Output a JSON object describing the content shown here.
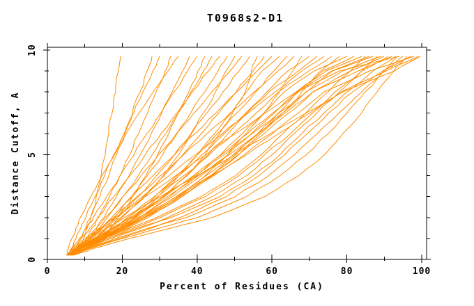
{
  "window": {
    "background": "#ffffff"
  },
  "colors": {
    "curve": "#ff8c00",
    "axis": "#000000",
    "text": "#000000",
    "background": "#ffffff"
  },
  "chart_data": {
    "type": "line",
    "title": "T0968s2-D1",
    "xlabel": "Percent of Residues (CA)",
    "ylabel": "Distance Cutoff, A",
    "xlim": [
      0,
      101.5
    ],
    "ylim": [
      0,
      10.15
    ],
    "grid": false,
    "legend": "none",
    "xticks_major": [
      0,
      20,
      40,
      60,
      80,
      100
    ],
    "xticks_minor": [
      10,
      30,
      50,
      70,
      90
    ],
    "xtick_labels": [
      "0",
      "20",
      "40",
      "60",
      "80",
      "100"
    ],
    "yticks_major": [
      0,
      5,
      10
    ],
    "yticks_minor": [
      1,
      2,
      3,
      4,
      6,
      7,
      8,
      9
    ],
    "ytick_labels": [
      "0",
      "5",
      "10"
    ],
    "series_note": "Each series is percent-of-residues (CA) sampled at the shared distance cutoffs below; one curve per predicted model",
    "cutoff_samples": [
      0.2,
      0.5,
      1,
      1.5,
      2,
      3,
      4,
      5,
      6,
      7,
      8,
      9,
      9.7
    ],
    "series": [
      [
        5.2,
        7.8,
        9.7,
        10.7,
        11.6,
        13.1,
        14.3,
        15.4,
        16.4,
        17.3,
        18.2,
        19.0,
        19.5
      ],
      [
        5.0,
        6.5,
        8.7,
        10.2,
        11.5,
        14.0,
        16.3,
        18.5,
        20.7,
        22.7,
        24.7,
        26.7,
        28.0
      ],
      [
        5.5,
        6.3,
        7.6,
        8.9,
        10.2,
        12.7,
        15.3,
        17.9,
        20.5,
        23.0,
        25.6,
        28.2,
        30.0
      ],
      [
        5.8,
        7.5,
        10.4,
        12.0,
        13.6,
        16.6,
        19.3,
        21.9,
        24.4,
        26.8,
        29.1,
        31.4,
        33.0
      ],
      [
        5.2,
        5.6,
        6.6,
        7.6,
        8.8,
        11.5,
        14.5,
        17.7,
        21.0,
        24.6,
        28.3,
        32.2,
        35.0
      ],
      [
        5.6,
        7.4,
        11.2,
        13.2,
        15.0,
        18.5,
        21.7,
        24.8,
        27.8,
        30.6,
        33.4,
        36.1,
        38.0
      ],
      [
        5.7,
        6.8,
        8.6,
        10.4,
        12.2,
        15.8,
        19.4,
        23.0,
        26.7,
        30.3,
        33.9,
        37.5,
        40.0
      ],
      [
        5.9,
        8.3,
        14.2,
        16.7,
        18.9,
        22.8,
        26.3,
        29.4,
        32.4,
        35.1,
        37.8,
        40.3,
        42.0
      ],
      [
        5.4,
        7.6,
        11.3,
        13.7,
        16.0,
        20.2,
        24.2,
        27.9,
        31.6,
        35.0,
        38.4,
        41.7,
        44.0
      ],
      [
        5.9,
        7.1,
        9.2,
        11.4,
        13.4,
        17.7,
        21.9,
        26.1,
        30.4,
        34.6,
        38.8,
        43.0,
        46.0
      ],
      [
        5.6,
        7.9,
        12.8,
        15.4,
        17.8,
        22.4,
        26.7,
        30.7,
        34.6,
        38.3,
        42.0,
        45.6,
        48.0
      ],
      [
        5.5,
        8.0,
        12.0,
        16.0,
        19.5,
        26.0,
        31.0,
        35.0,
        38.5,
        41.8,
        44.9,
        47.7,
        50.0
      ],
      [
        6.1,
        7.4,
        10.7,
        13.1,
        15.5,
        20.2,
        25.0,
        29.7,
        34.5,
        39.2,
        44.0,
        48.7,
        52.0
      ],
      [
        5.3,
        7.6,
        12.9,
        16.0,
        18.8,
        24.2,
        29.1,
        33.8,
        38.4,
        42.7,
        47.0,
        51.2,
        54.0
      ],
      [
        6.0,
        9.0,
        14.0,
        19.0,
        23.0,
        31.0,
        37.0,
        42.0,
        46.0,
        49.5,
        52.8,
        54.6,
        56.0
      ],
      [
        5.4,
        7.9,
        13.6,
        16.9,
        19.9,
        25.7,
        31.1,
        36.2,
        41.1,
        45.8,
        50.4,
        54.9,
        58.0
      ],
      [
        6.1,
        7.8,
        11.6,
        14.4,
        17.1,
        22.7,
        28.2,
        33.8,
        39.4,
        45.0,
        50.6,
        56.1,
        60.0
      ],
      [
        5.6,
        8.3,
        14.0,
        19.9,
        23.4,
        29.6,
        35.1,
        40.1,
        44.7,
        49.1,
        53.3,
        57.3,
        62.0
      ],
      [
        5.6,
        8.4,
        15.4,
        19.0,
        22.4,
        28.7,
        34.5,
        40.1,
        45.5,
        50.7,
        55.7,
        60.6,
        64.0
      ],
      [
        6.3,
        8.2,
        11.3,
        14.5,
        17.6,
        23.9,
        30.1,
        36.4,
        42.7,
        49.0,
        55.3,
        61.6,
        66.0
      ],
      [
        6.5,
        10.0,
        15.0,
        21.0,
        26.0,
        35.0,
        42.0,
        48.0,
        53.0,
        58.0,
        62.0,
        65.5,
        68.0
      ],
      [
        5.9,
        8.5,
        13.5,
        17.6,
        21.3,
        28.4,
        35.0,
        41.2,
        47.3,
        53.1,
        58.7,
        64.2,
        70.0
      ],
      [
        6.3,
        9.6,
        15.0,
        19.6,
        23.6,
        30.8,
        37.2,
        42.9,
        48.3,
        53.4,
        59.2,
        67.0,
        72.0
      ],
      [
        5.4,
        7.6,
        11.1,
        14.7,
        18.2,
        25.3,
        32.4,
        39.5,
        46.7,
        53.8,
        60.9,
        68.0,
        74.0
      ],
      [
        6.2,
        8.5,
        13.3,
        17.7,
        21.7,
        29.4,
        36.4,
        43.2,
        49.7,
        55.9,
        61.9,
        69.9,
        76.0
      ],
      [
        6.0,
        9.0,
        14.0,
        20.0,
        26.0,
        36.0,
        44.0,
        51.0,
        57.0,
        63.0,
        68.0,
        73.0,
        78.0
      ],
      [
        5.9,
        8.8,
        14.9,
        20.0,
        24.5,
        32.6,
        39.7,
        46.1,
        52.2,
        57.9,
        63.3,
        71.4,
        80.0
      ],
      [
        5.5,
        8.2,
        13.5,
        18.2,
        22.7,
        31.1,
        38.9,
        46.3,
        53.4,
        60.3,
        67.0,
        73.5,
        82.0
      ],
      [
        5.6,
        7.1,
        10.0,
        14.1,
        18.1,
        26.1,
        34.1,
        42.2,
        50.3,
        58.3,
        66.4,
        74.4,
        84.0
      ],
      [
        6.0,
        9.0,
        15.0,
        22.0,
        29.0,
        41.0,
        50.0,
        57.0,
        63.0,
        69.0,
        75.0,
        81.0,
        85.0
      ],
      [
        6.4,
        8.7,
        14.2,
        19.8,
        24.6,
        33.4,
        41.0,
        48.0,
        54.6,
        60.7,
        66.6,
        76.0,
        86.0
      ],
      [
        5.7,
        7.6,
        12.3,
        17.4,
        22.1,
        31.1,
        39.3,
        47.2,
        54.8,
        62.1,
        69.2,
        76.2,
        87.0
      ],
      [
        6.5,
        10.0,
        17.0,
        25.0,
        32.0,
        44.0,
        53.0,
        60.0,
        66.0,
        72.0,
        78.0,
        84.0,
        88.0
      ],
      [
        5.7,
        8.3,
        14.2,
        20.0,
        25.1,
        34.2,
        42.3,
        49.6,
        56.5,
        62.9,
        69.1,
        79.0,
        89.0
      ],
      [
        5.8,
        7.8,
        12.6,
        17.8,
        22.7,
        31.8,
        40.3,
        48.4,
        56.2,
        63.7,
        71.0,
        81.0,
        90.0
      ],
      [
        6.0,
        9.5,
        16.0,
        23.0,
        30.0,
        42.0,
        51.0,
        58.0,
        65.0,
        71.0,
        77.0,
        84.0,
        91.0
      ],
      [
        5.9,
        8.6,
        14.6,
        20.5,
        25.8,
        35.2,
        43.4,
        50.9,
        57.9,
        64.6,
        70.9,
        83.0,
        92.0
      ],
      [
        6.0,
        9.0,
        16.0,
        24.0,
        33.0,
        46.0,
        55.0,
        62.0,
        68.0,
        74.0,
        80.0,
        87.0,
        93.0
      ],
      [
        6.3,
        9.0,
        15.2,
        21.6,
        26.9,
        35.9,
        43.5,
        50.2,
        56.2,
        61.8,
        66.9,
        78.0,
        94.0
      ],
      [
        6.5,
        10.0,
        18.0,
        27.0,
        37.0,
        50.0,
        59.0,
        66.0,
        72.0,
        78.0,
        84.0,
        90.0,
        95.0
      ],
      [
        7.0,
        12.0,
        22.0,
        33.0,
        44.0,
        58.0,
        67.0,
        74.0,
        79.0,
        84.0,
        88.0,
        92.5,
        96.0
      ],
      [
        6.7,
        10.7,
        19.2,
        27.8,
        35.3,
        47.6,
        56.4,
        63.3,
        69.5,
        75.3,
        81.5,
        89.5,
        97.0
      ],
      [
        5.4,
        7.6,
        13.2,
        19.6,
        25.3,
        35.4,
        44.4,
        52.5,
        60.1,
        67.3,
        74.0,
        86.0,
        98.0
      ],
      [
        5.2,
        7.6,
        13.1,
        18.9,
        24.3,
        34.4,
        43.9,
        53.0,
        61.8,
        70.2,
        78.5,
        90.5,
        99.0
      ],
      [
        5.0,
        6.9,
        10.7,
        15.7,
        20.5,
        30.2,
        40.0,
        49.7,
        59.5,
        69.2,
        79.0,
        92.7,
        99.6
      ],
      [
        6.5,
        11.0,
        20.0,
        30.0,
        40.0,
        53.0,
        62.0,
        69.0,
        75.0,
        80.0,
        85.0,
        90.0,
        93.5
      ]
    ]
  }
}
